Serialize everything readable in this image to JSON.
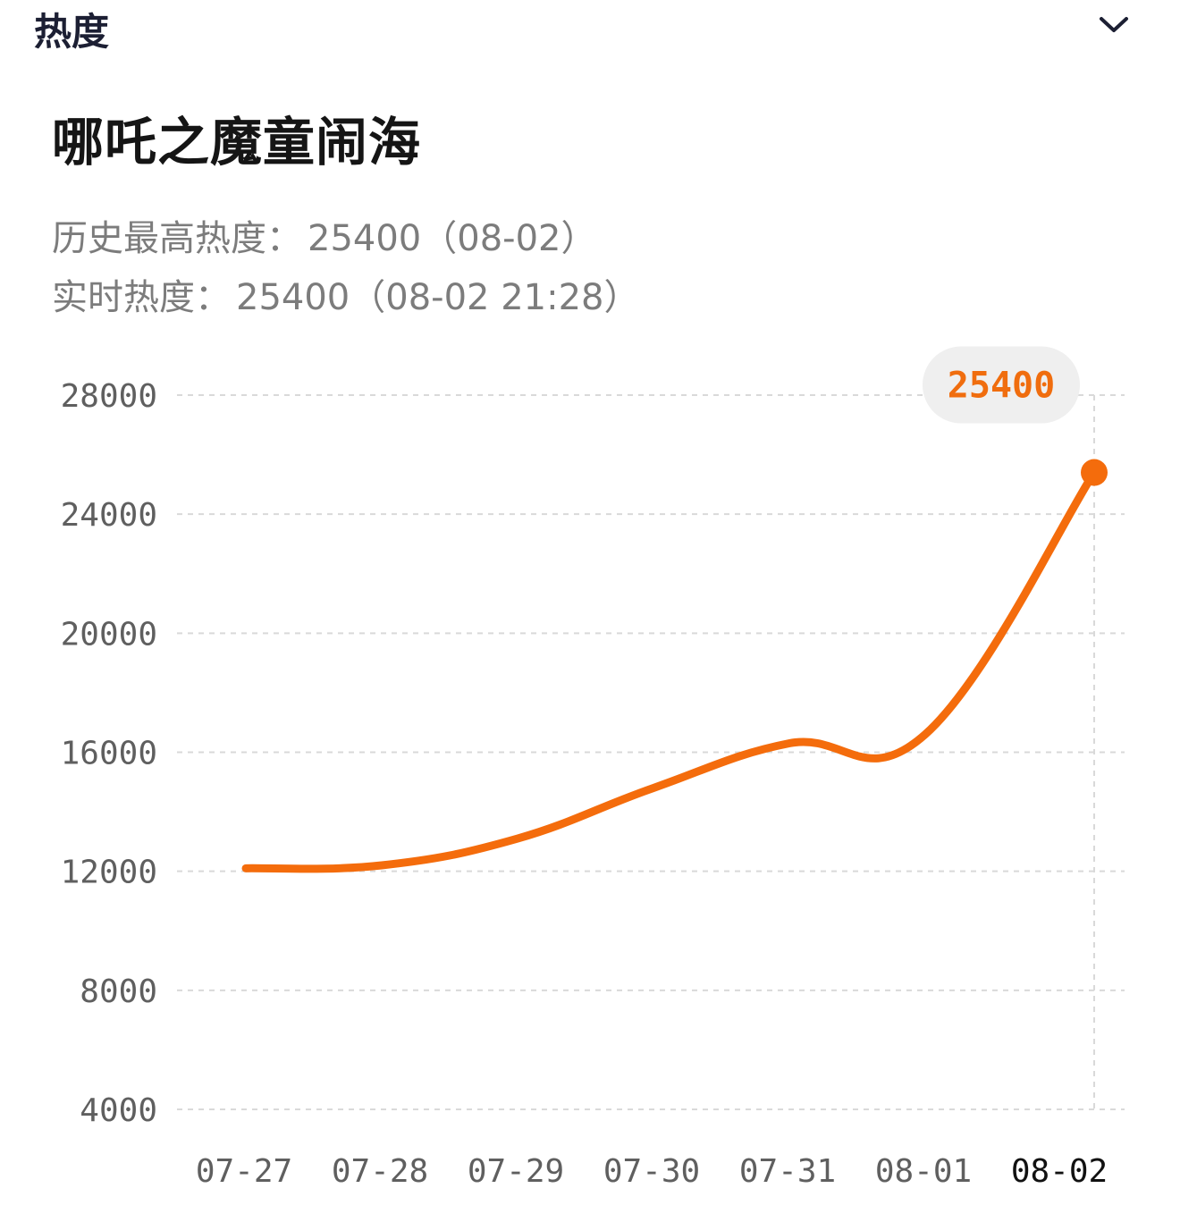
{
  "header": {
    "title": "热度",
    "toggle_icon": "chevron-down-icon"
  },
  "title": "哪吒之魔童闹海",
  "stats": {
    "peak_label": "历史最高热度：",
    "peak_value": "25400（08-02）",
    "realtime_label": "实时热度：",
    "realtime_value": "25400（08-02 21:28）"
  },
  "colors": {
    "line": "#f46c0c",
    "grid": "#d9d9d9",
    "callout_bg": "#efefef",
    "callout_text": "#f06d0e"
  },
  "chart_data": {
    "type": "line",
    "title": "",
    "xlabel": "",
    "ylabel": "",
    "x": [
      "07-27",
      "07-28",
      "07-29",
      "07-30",
      "07-31",
      "08-01",
      "08-02"
    ],
    "series": [
      {
        "values": [
          12100,
          12200,
          13100,
          14800,
          16300,
          16600,
          25400
        ]
      }
    ],
    "ylim": [
      4000,
      28000
    ],
    "yticks": [
      "4000",
      "8000",
      "12000",
      "16000",
      "20000",
      "24000",
      "28000"
    ],
    "grid": true,
    "legend": "none",
    "highlight": {
      "x": "08-02",
      "value": "25400"
    }
  }
}
